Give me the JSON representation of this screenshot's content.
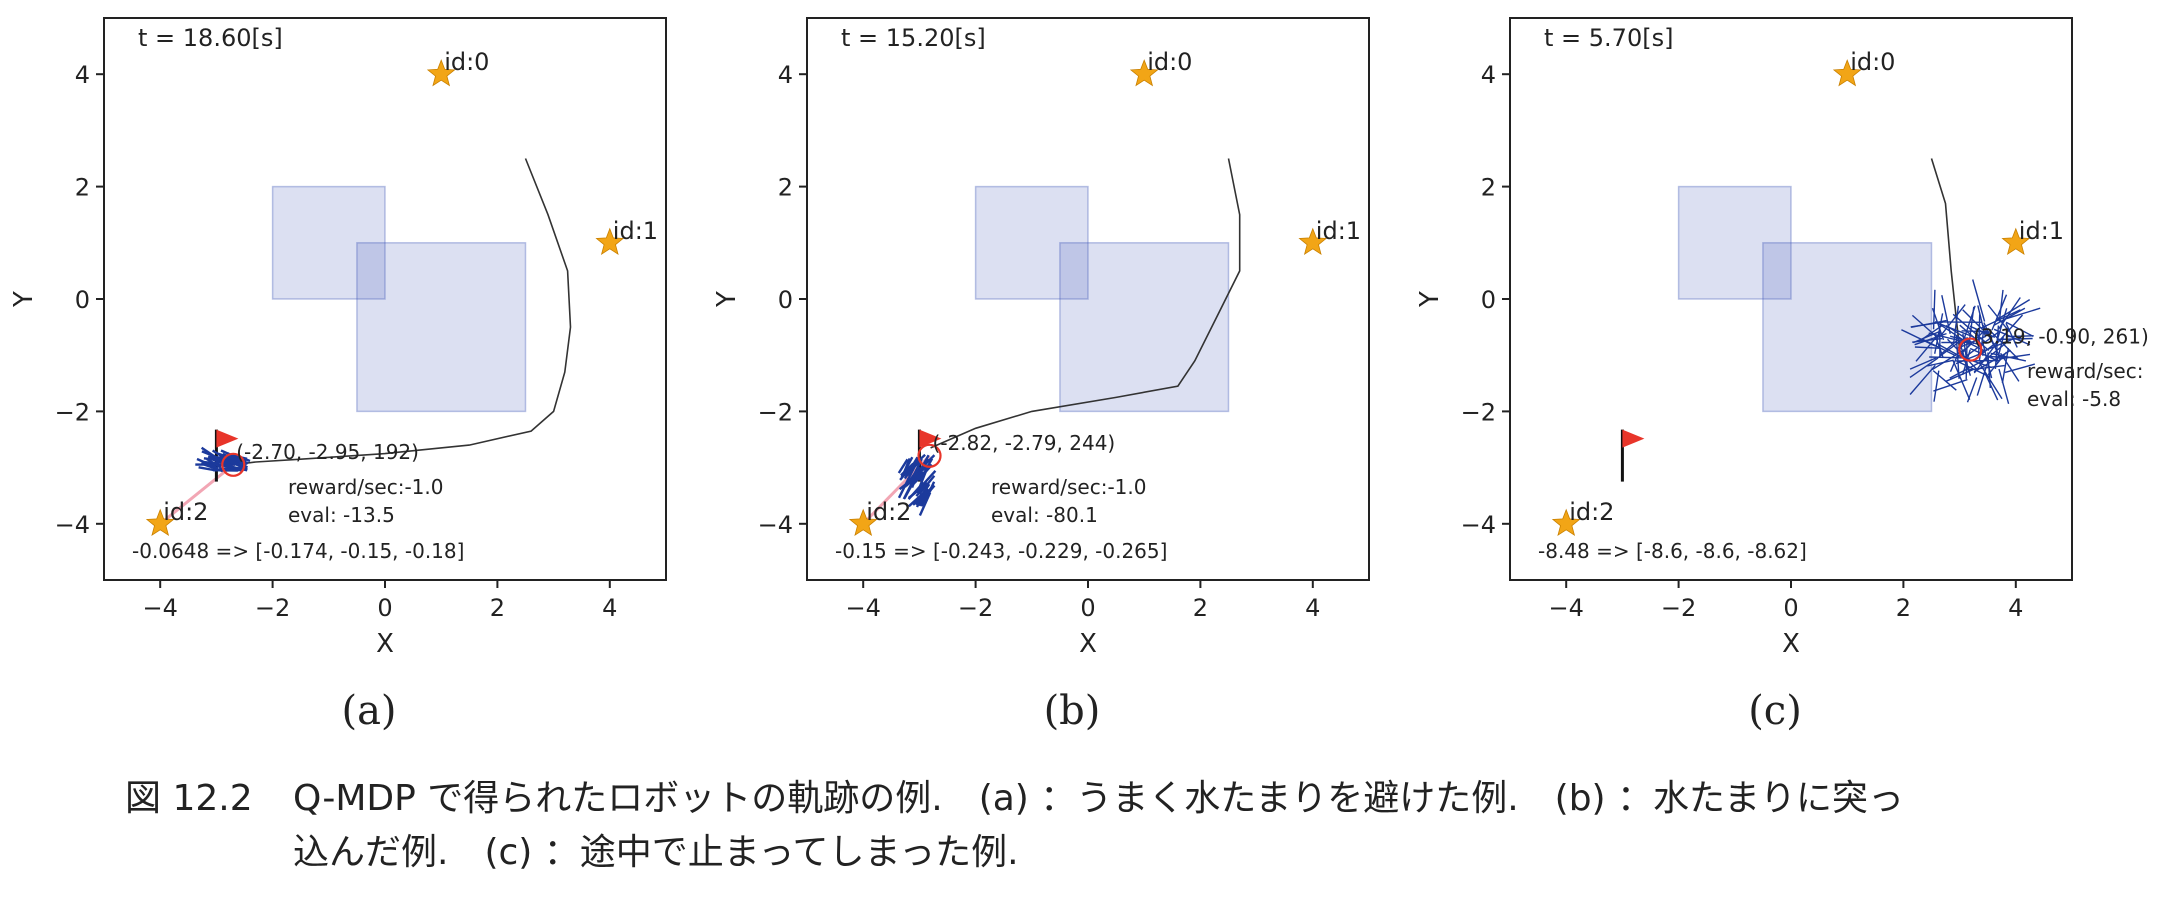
{
  "colors": {
    "puddle": "#3f55b8",
    "trajectory": "#333333",
    "landmark": "#f2a516",
    "flag": "#e8352a",
    "estimate_circle": "#e8352a",
    "particles": "#1c3a9c",
    "observation_line": "#f2a6b4"
  },
  "chart_data": [
    {
      "type": "scatter",
      "panel_label": "(a)",
      "time_text": "t = 18.60[s]",
      "xlabel": "X",
      "ylabel": "Y",
      "xlim": [
        -5,
        5
      ],
      "ylim": [
        -5,
        5
      ],
      "xticks": [
        "−4",
        "−2",
        "0",
        "2",
        "4"
      ],
      "yticks": [
        "4",
        "2",
        "0",
        "−2",
        "−4"
      ],
      "grid": false,
      "puddles": [
        {
          "x0": -2,
          "y0": 0,
          "x1": 0,
          "y1": 2
        },
        {
          "x0": -0.5,
          "y0": -2,
          "x1": 2.5,
          "y1": 1
        }
      ],
      "landmarks": [
        {
          "label": "id:0",
          "x": 1,
          "y": 4
        },
        {
          "label": "id:1",
          "x": 4,
          "y": 1
        },
        {
          "label": "id:2",
          "x": -4,
          "y": -4
        }
      ],
      "goal": {
        "x": -3,
        "y": -3
      },
      "trajectory": [
        [
          2.5,
          2.5
        ],
        [
          2.9,
          1.5
        ],
        [
          3.25,
          0.5
        ],
        [
          3.3,
          -0.5
        ],
        [
          3.2,
          -1.3
        ],
        [
          3.0,
          -2.0
        ],
        [
          2.6,
          -2.35
        ],
        [
          1.5,
          -2.6
        ],
        [
          0,
          -2.75
        ],
        [
          -1.5,
          -2.85
        ],
        [
          -2.3,
          -2.9
        ],
        [
          -2.7,
          -2.95
        ]
      ],
      "particle_spread": [
        0.3,
        0.12
      ],
      "estimate": {
        "x": -2.7,
        "y": -2.95
      },
      "observations": [
        {
          "landmark": "id:2"
        }
      ],
      "pose_text": "(-2.70, -2.95, 192)",
      "reward_text": "reward/sec:-1.0",
      "eval_text": "eval: -13.5",
      "value_text": "-0.0648 => [-0.174, -0.15, -0.18]"
    },
    {
      "type": "scatter",
      "panel_label": "(b)",
      "time_text": "t = 15.20[s]",
      "xlabel": "X",
      "ylabel": "Y",
      "xlim": [
        -5,
        5
      ],
      "ylim": [
        -5,
        5
      ],
      "xticks": [
        "−4",
        "−2",
        "0",
        "2",
        "4"
      ],
      "yticks": [
        "4",
        "2",
        "0",
        "−2",
        "−4"
      ],
      "grid": false,
      "puddles": [
        {
          "x0": -2,
          "y0": 0,
          "x1": 0,
          "y1": 2
        },
        {
          "x0": -0.5,
          "y0": -2,
          "x1": 2.5,
          "y1": 1
        }
      ],
      "landmarks": [
        {
          "label": "id:0",
          "x": 1,
          "y": 4
        },
        {
          "label": "id:1",
          "x": 4,
          "y": 1
        },
        {
          "label": "id:2",
          "x": -4,
          "y": -4
        }
      ],
      "goal": {
        "x": -3,
        "y": -3
      },
      "trajectory": [
        [
          2.5,
          2.5
        ],
        [
          2.7,
          1.5
        ],
        [
          2.7,
          0.5
        ],
        [
          2.3,
          -0.3
        ],
        [
          1.9,
          -1.1
        ],
        [
          1.6,
          -1.55
        ],
        [
          0.5,
          -1.75
        ],
        [
          -1.0,
          -2.0
        ],
        [
          -2.0,
          -2.3
        ],
        [
          -2.8,
          -2.65
        ]
      ],
      "particle_spread": [
        0.25,
        0.35
      ],
      "estimate": {
        "x": -2.82,
        "y": -2.79
      },
      "observations": [
        {
          "landmark": "id:2"
        }
      ],
      "pose_text": "(-2.82, -2.79, 244)",
      "reward_text": "reward/sec:-1.0",
      "eval_text": "eval: -80.1",
      "value_text": "-0.15 => [-0.243, -0.229, -0.265]"
    },
    {
      "type": "scatter",
      "panel_label": "(c)",
      "time_text": "t = 5.70[s]",
      "xlabel": "X",
      "ylabel": "Y",
      "xlim": [
        -5,
        5
      ],
      "ylim": [
        -5,
        5
      ],
      "xticks": [
        "−4",
        "−2",
        "0",
        "2",
        "4"
      ],
      "yticks": [
        "4",
        "2",
        "0",
        "−2",
        "−4"
      ],
      "grid": false,
      "puddles": [
        {
          "x0": -2,
          "y0": 0,
          "x1": 0,
          "y1": 2
        },
        {
          "x0": -0.5,
          "y0": -2,
          "x1": 2.5,
          "y1": 1
        }
      ],
      "landmarks": [
        {
          "label": "id:0",
          "x": 1,
          "y": 4
        },
        {
          "label": "id:1",
          "x": 4,
          "y": 1
        },
        {
          "label": "id:2",
          "x": -4,
          "y": -4
        }
      ],
      "goal": {
        "x": -3,
        "y": -3
      },
      "trajectory": [
        [
          2.5,
          2.5
        ],
        [
          2.75,
          1.7
        ],
        [
          2.85,
          0.5
        ],
        [
          3.0,
          -0.9
        ]
      ],
      "particle_spread": [
        0.7,
        0.55
      ],
      "estimate": {
        "x": 3.19,
        "y": -0.9
      },
      "observations": [],
      "pose_text": "(3.19, -0.90, 261)",
      "reward_text": "reward/sec:",
      "eval_text": "eval: -5.8",
      "value_text": "-8.48 => [-8.6, -8.6, -8.62]"
    }
  ],
  "caption": {
    "number": "図 12.2",
    "line1": "Q-MDP で得られたロボットの軌跡の例.　(a) ：うまく水たまりを避けた例.　(b) ：水たまりに突っ",
    "line2": "込んだ例.　(c) ：途中で止まってしまった例."
  }
}
